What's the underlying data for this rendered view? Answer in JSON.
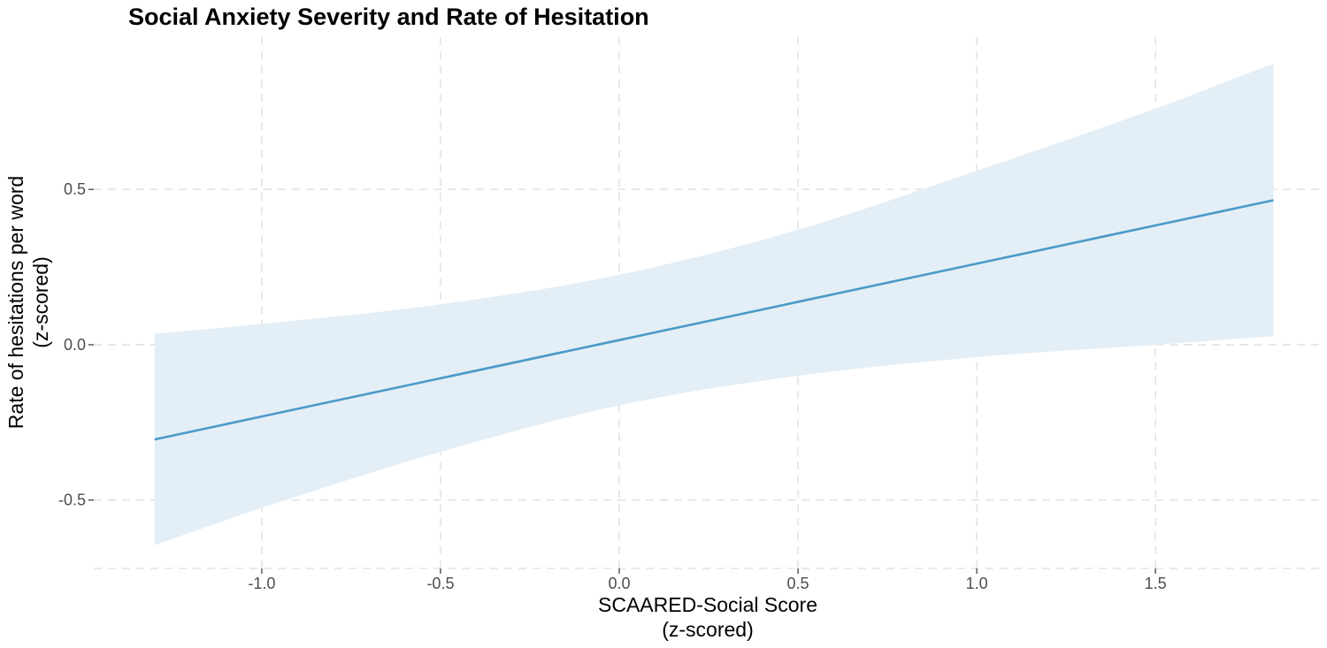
{
  "chart_data": {
    "type": "line",
    "title": "Social Anxiety Severity and Rate of Hesitation",
    "xlabel": [
      "SCAARED-Social Score",
      "(z-scored)"
    ],
    "ylabel": [
      "Rate of hesitations per word",
      "(z-scored)"
    ],
    "xlim": [
      -1.47,
      1.96
    ],
    "ylim": [
      -0.72,
      0.99
    ],
    "x_ticks": [
      -1.0,
      -0.5,
      0.0,
      0.5,
      1.0,
      1.5
    ],
    "x_tick_labels": [
      "-1.0",
      "-0.5",
      "0.0",
      "0.5",
      "1.0",
      "1.5"
    ],
    "y_ticks": [
      -0.5,
      0.0,
      0.5
    ],
    "y_tick_labels": [
      "-0.5",
      "0.0",
      "0.5"
    ],
    "grid": true,
    "legend": "none",
    "colors": {
      "line": "#4a9ac7",
      "ribbon": "#e3eef6"
    },
    "series": [
      {
        "x": [
          -1.3,
          -1.0,
          -0.5,
          0.0,
          0.5,
          1.0,
          1.5,
          1.83
        ],
        "fit": [
          -0.305,
          -0.231,
          -0.108,
          0.015,
          0.138,
          0.261,
          0.384,
          0.465
        ],
        "lower": [
          -0.645,
          -0.525,
          -0.345,
          -0.195,
          -0.1,
          -0.04,
          0.0,
          0.028
        ],
        "upper": [
          0.035,
          0.067,
          0.13,
          0.225,
          0.37,
          0.56,
          0.76,
          0.905
        ]
      }
    ]
  }
}
